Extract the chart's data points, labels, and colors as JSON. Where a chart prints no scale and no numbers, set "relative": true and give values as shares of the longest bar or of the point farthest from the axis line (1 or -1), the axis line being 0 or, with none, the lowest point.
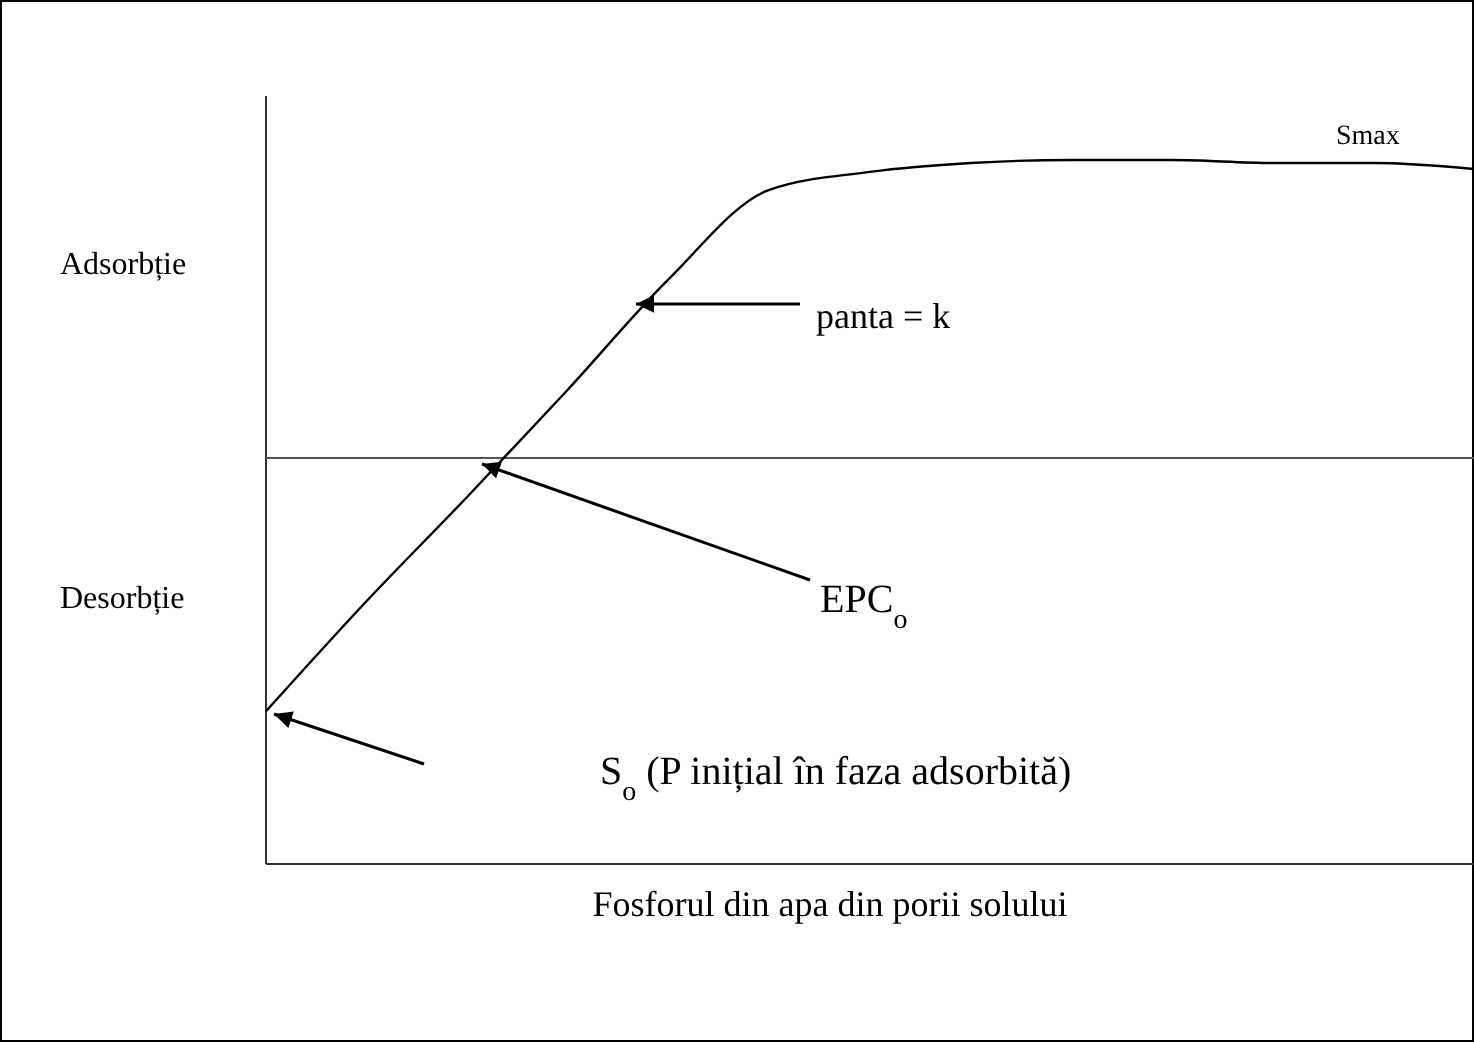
{
  "chart_data": {
    "type": "line",
    "relative": true,
    "xlabel": "Fosforul din apa din porii solului",
    "categories": [
      null,
      null,
      null,
      null,
      null,
      null,
      null,
      null,
      null,
      null,
      null,
      null,
      null
    ],
    "series": [
      {
        "color": "#000000",
        "values": [
          -0.85,
          -0.48,
          -0.13,
          0.23,
          0.6,
          0.9,
          0.96,
          0.99,
          1,
          1,
          0.99,
          0.99,
          0.97
        ]
      }
    ],
    "annotations": [
      "Smax",
      "Adsorbție",
      "Desorbție",
      "panta = k",
      "EPC$_{o}$",
      "S$_{o}$  (P inițial în faza adsorbită)"
    ],
    "line_style": "solid"
  }
}
